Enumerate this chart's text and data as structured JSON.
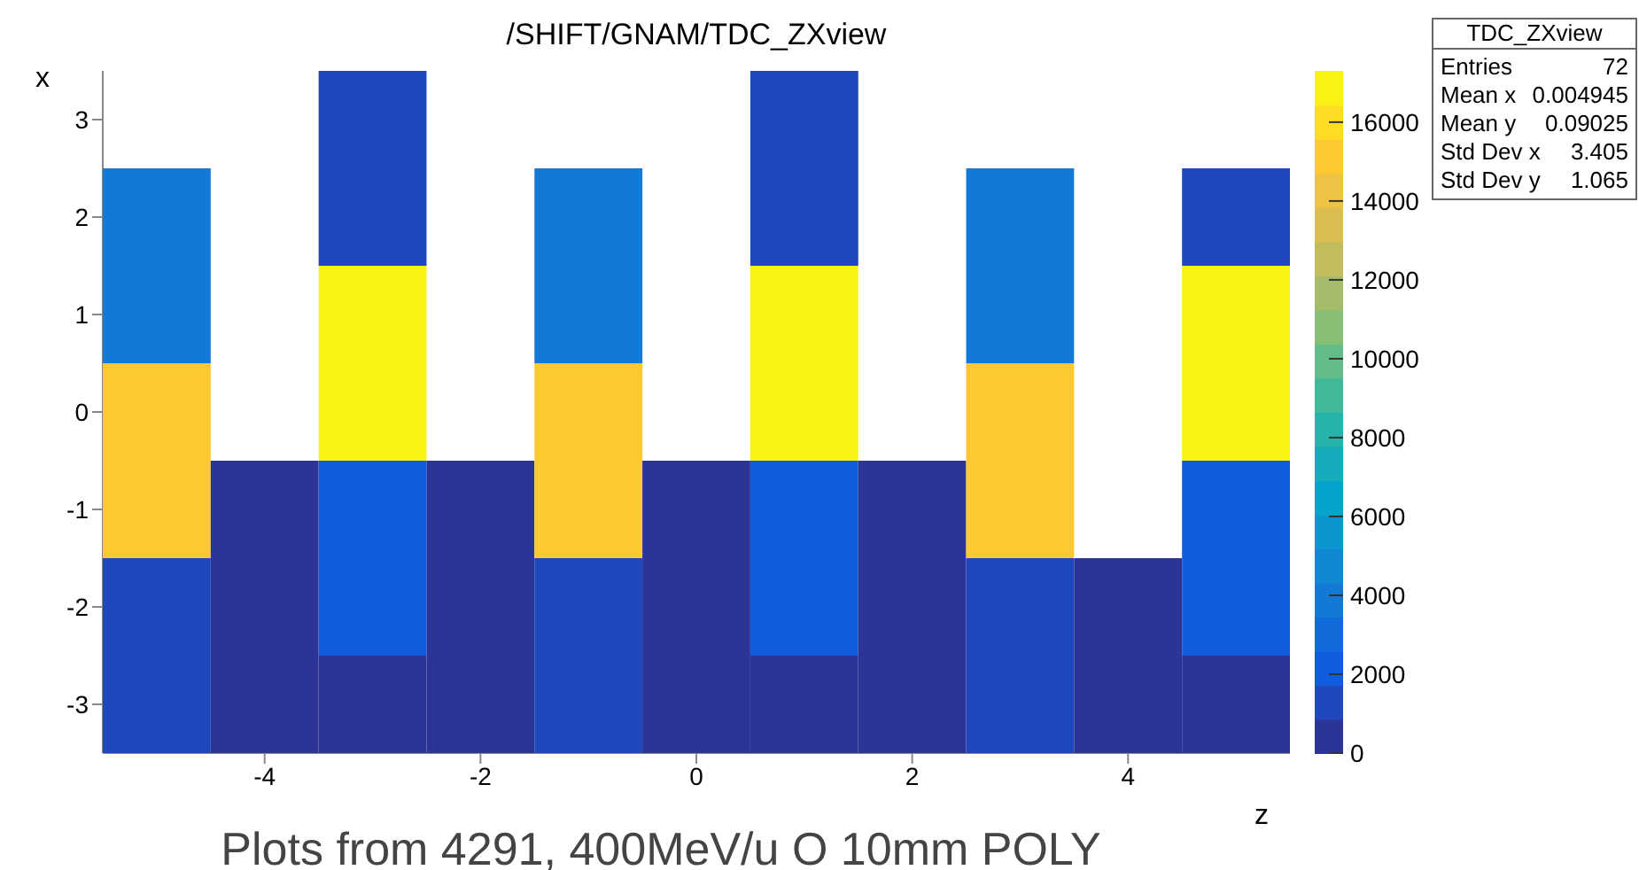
{
  "chart_data": {
    "type": "heatmap",
    "title": "/SHIFT/GNAM/TDC_ZXview",
    "xlabel": "z",
    "ylabel": "x",
    "x": [
      -5,
      -4,
      -3,
      -2,
      -1,
      0,
      1,
      2,
      3,
      4,
      5
    ],
    "cells": [
      [
        null,
        null,
        1500,
        null,
        null,
        null,
        1500,
        null,
        null,
        null,
        null
      ],
      [
        4000,
        null,
        1500,
        null,
        4000,
        null,
        1500,
        null,
        4000,
        null,
        1500
      ],
      [
        4000,
        null,
        17000,
        null,
        4000,
        null,
        17000,
        null,
        4000,
        null,
        17000
      ],
      [
        15500,
        null,
        17000,
        null,
        15500,
        null,
        17000,
        null,
        15500,
        null,
        17000
      ],
      [
        15500,
        500,
        2500,
        500,
        15500,
        500,
        2500,
        500,
        15500,
        null,
        2500
      ],
      [
        1500,
        500,
        2500,
        500,
        1500,
        500,
        2500,
        500,
        1500,
        500,
        2500
      ],
      [
        1500,
        500,
        500,
        500,
        1500,
        500,
        500,
        500,
        1500,
        500,
        500
      ]
    ],
    "xlim": [
      -5.5,
      5.5
    ],
    "ylim": [
      -3.5,
      3.5
    ],
    "xticks": [
      -4,
      -2,
      0,
      2,
      4
    ],
    "yticks": [
      -3,
      -2,
      -1,
      0,
      1,
      2,
      3
    ],
    "clim": [
      0,
      17300
    ],
    "cticks": [
      0,
      2000,
      4000,
      6000,
      8000,
      10000,
      12000,
      14000,
      16000
    ],
    "annotations": [
      "TDC_ZXview",
      "Entries",
      "72",
      "Mean x",
      "0.004945",
      "Mean y",
      "0.09025",
      "Std Dev x",
      "3.405",
      "Std Dev y",
      "1.065",
      "Plots from 4291, 400MeV/u O 10mm POLY"
    ]
  }
}
